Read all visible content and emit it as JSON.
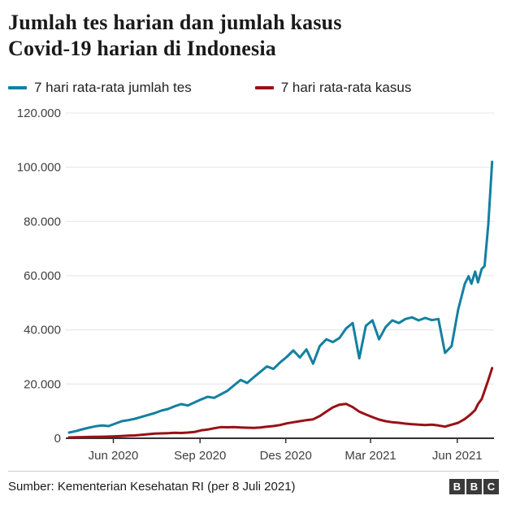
{
  "header": {
    "title_lines": [
      "Jumlah tes harian dan jumlah kasus",
      "Covid-19 harian di Indonesia"
    ]
  },
  "legend": {
    "items": [
      {
        "label": "7 hari rata-rata jumlah tes",
        "color": "#1380A1"
      },
      {
        "label": "7 hari rata-rata kasus",
        "color": "#991016"
      }
    ]
  },
  "footer": {
    "source": "Sumber: Kementerian Kesehatan RI (per 8 Juli 2021)",
    "logo_letters": [
      "B",
      "B",
      "C"
    ]
  },
  "brand": {
    "logo_bg": "#3a3a3a"
  },
  "chart_data": {
    "type": "line",
    "title": "Jumlah tes harian dan jumlah kasus Covid-19 harian di Indonesia",
    "xlabel": "",
    "ylabel": "",
    "ylim": [
      0,
      120000
    ],
    "grid": "horizontal",
    "legend_position": "top",
    "x_domain": [
      "2020-04-15",
      "2021-07-10"
    ],
    "x_ticks": [
      {
        "date": "2020-06-01",
        "label": "Jun 2020"
      },
      {
        "date": "2020-09-01",
        "label": "Sep 2020"
      },
      {
        "date": "2020-12-01",
        "label": "Des 2020"
      },
      {
        "date": "2021-03-01",
        "label": "Mar 2021"
      },
      {
        "date": "2021-06-01",
        "label": "Jun 2021"
      }
    ],
    "y_ticks": [
      0,
      20000,
      40000,
      60000,
      80000,
      100000,
      120000
    ],
    "y_tick_labels": [
      "0",
      "20.000",
      "40.000",
      "60.000",
      "80.000",
      "100.000",
      "120.000"
    ],
    "x": [
      "2020-04-15",
      "2020-04-22",
      "2020-04-29",
      "2020-05-06",
      "2020-05-13",
      "2020-05-20",
      "2020-05-27",
      "2020-06-03",
      "2020-06-10",
      "2020-06-17",
      "2020-06-24",
      "2020-07-01",
      "2020-07-08",
      "2020-07-15",
      "2020-07-22",
      "2020-07-29",
      "2020-08-05",
      "2020-08-12",
      "2020-08-19",
      "2020-08-26",
      "2020-09-02",
      "2020-09-09",
      "2020-09-16",
      "2020-09-23",
      "2020-09-30",
      "2020-10-07",
      "2020-10-14",
      "2020-10-21",
      "2020-10-28",
      "2020-11-04",
      "2020-11-11",
      "2020-11-18",
      "2020-11-25",
      "2020-12-02",
      "2020-12-09",
      "2020-12-16",
      "2020-12-23",
      "2020-12-30",
      "2021-01-06",
      "2021-01-13",
      "2021-01-20",
      "2021-01-27",
      "2021-02-03",
      "2021-02-10",
      "2021-02-17",
      "2021-02-24",
      "2021-03-03",
      "2021-03-10",
      "2021-03-17",
      "2021-03-24",
      "2021-03-31",
      "2021-04-07",
      "2021-04-14",
      "2021-04-21",
      "2021-04-28",
      "2021-05-05",
      "2021-05-12",
      "2021-05-19",
      "2021-05-26",
      "2021-06-02",
      "2021-06-09",
      "2021-06-13",
      "2021-06-16",
      "2021-06-20",
      "2021-06-23",
      "2021-06-27",
      "2021-06-30",
      "2021-07-04",
      "2021-07-08"
    ],
    "series": [
      {
        "name": "7 hari rata-rata jumlah tes",
        "color": "#1380A1",
        "values": [
          2100,
          2600,
          3300,
          3900,
          4400,
          4700,
          4500,
          5400,
          6300,
          6700,
          7200,
          7900,
          8600,
          9300,
          10200,
          10800,
          11800,
          12600,
          12100,
          13200,
          14300,
          15300,
          14900,
          16200,
          17500,
          19500,
          21500,
          20400,
          22500,
          24500,
          26500,
          25600,
          28000,
          30000,
          32400,
          29800,
          32800,
          27500,
          34000,
          36500,
          35500,
          37000,
          40500,
          42500,
          29500,
          41500,
          43500,
          36500,
          41000,
          43500,
          42500,
          44000,
          44600,
          43500,
          44400,
          43600,
          44000,
          31500,
          34000,
          47500,
          57000,
          59800,
          57000,
          61500,
          57500,
          62500,
          63500,
          79000,
          102000
        ]
      },
      {
        "name": "7 hari rata-rata kasus",
        "color": "#991016",
        "values": [
          300,
          360,
          420,
          470,
          520,
          560,
          620,
          720,
          850,
          950,
          1050,
          1250,
          1500,
          1700,
          1800,
          1900,
          2000,
          1950,
          2100,
          2300,
          2900,
          3200,
          3700,
          4100,
          4050,
          4100,
          4000,
          3900,
          3850,
          4000,
          4250,
          4500,
          4900,
          5500,
          5900,
          6300,
          6700,
          7000,
          8200,
          9800,
          11400,
          12400,
          12700,
          11500,
          9800,
          8800,
          7800,
          6900,
          6300,
          5900,
          5700,
          5400,
          5200,
          5000,
          4900,
          5000,
          4700,
          4300,
          5000,
          5700,
          7100,
          8200,
          9100,
          10400,
          12600,
          14500,
          17500,
          21500,
          25900
        ]
      }
    ]
  }
}
